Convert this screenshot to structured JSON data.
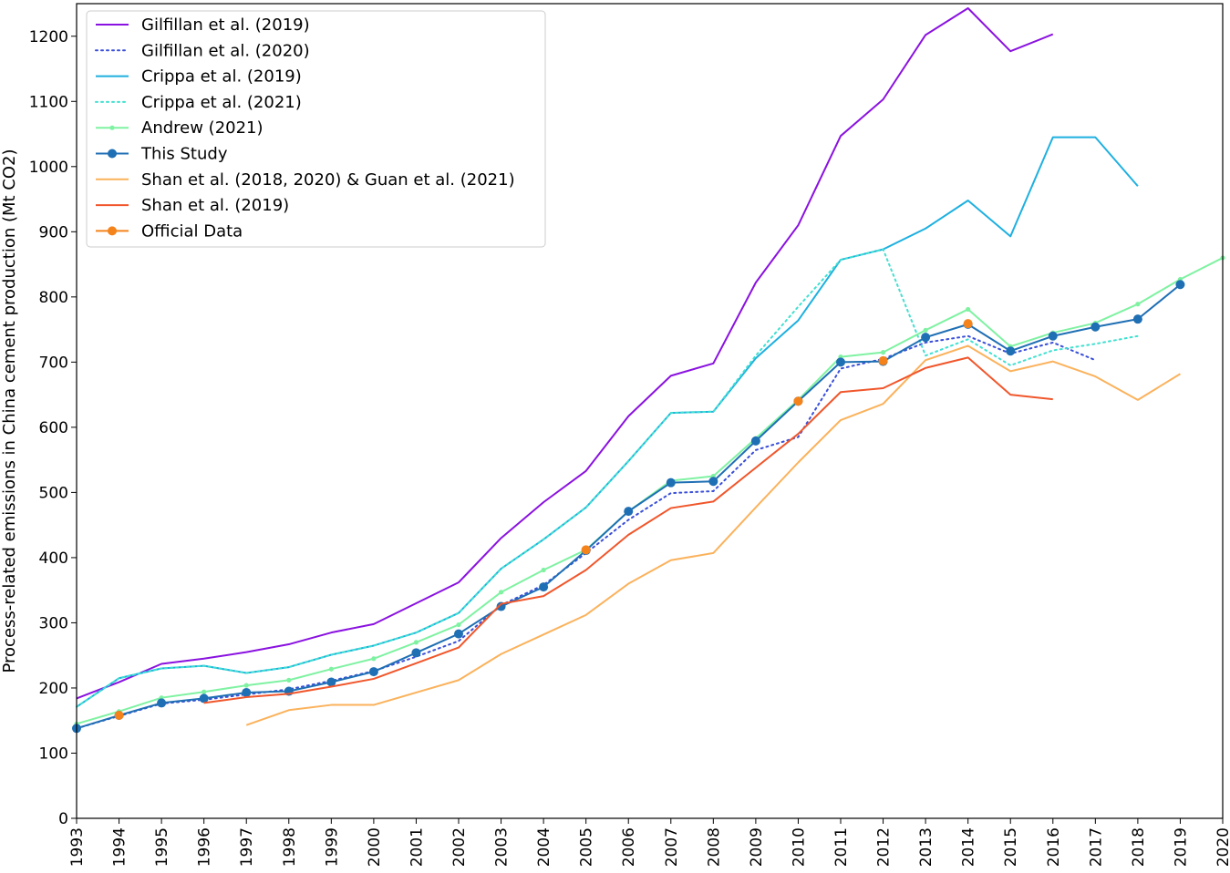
{
  "chart_data": {
    "type": "line",
    "title": "",
    "xlabel": "",
    "ylabel": "Process-related emissions in China cement production (Mt CO2)",
    "xlim": [
      1993,
      2020
    ],
    "ylim": [
      0,
      1250
    ],
    "xticks": [
      "1993",
      "1994",
      "1995",
      "1996",
      "1997",
      "1998",
      "1999",
      "2000",
      "2001",
      "2002",
      "2003",
      "2004",
      "2005",
      "2006",
      "2007",
      "2008",
      "2009",
      "2010",
      "2011",
      "2012",
      "2013",
      "2014",
      "2015",
      "2016",
      "2017",
      "2018",
      "2019",
      "2020"
    ],
    "yticks": [
      "0",
      "100",
      "200",
      "300",
      "400",
      "500",
      "600",
      "700",
      "800",
      "900",
      "1000",
      "1100",
      "1200"
    ],
    "legend_position": "top-left",
    "series": [
      {
        "name": "Gilfillan et al. (2019)",
        "color": "#8a12e0",
        "style": "solid",
        "marker": "none",
        "x": [
          1993,
          1994,
          1995,
          1996,
          1997,
          1998,
          1999,
          2000,
          2001,
          2002,
          2003,
          2004,
          2005,
          2006,
          2007,
          2008,
          2009,
          2010,
          2011,
          2012,
          2013,
          2014,
          2015,
          2016
        ],
        "values": [
          184,
          209,
          237,
          245,
          255,
          267,
          285,
          298,
          330,
          362,
          430,
          485,
          533,
          617,
          679,
          698,
          822,
          910,
          1047,
          1103,
          1202,
          1243,
          1177,
          1203
        ]
      },
      {
        "name": "Gilfillan et al. (2020)",
        "color": "#3a4fd8",
        "style": "dotted",
        "marker": "none",
        "x": [
          1993,
          1994,
          1995,
          1996,
          1997,
          1998,
          1999,
          2000,
          2001,
          2002,
          2003,
          2004,
          2005,
          2006,
          2007,
          2008,
          2009,
          2010,
          2011,
          2012,
          2013,
          2014,
          2015,
          2016,
          2017
        ],
        "values": [
          138,
          157,
          176,
          182,
          190,
          198,
          211,
          226,
          248,
          272,
          327,
          358,
          407,
          458,
          499,
          502,
          565,
          585,
          690,
          705,
          730,
          740,
          713,
          730,
          703
        ]
      },
      {
        "name": "Crippa et al. (2019)",
        "color": "#1eb0e0",
        "style": "solid",
        "marker": "none",
        "x": [
          1993,
          1994,
          1995,
          1996,
          1997,
          1998,
          1999,
          2000,
          2001,
          2002,
          2003,
          2004,
          2005,
          2006,
          2007,
          2008,
          2009,
          2010,
          2011,
          2012,
          2013,
          2014,
          2015,
          2016,
          2017,
          2018
        ],
        "values": [
          171,
          215,
          230,
          234,
          223,
          232,
          251,
          265,
          285,
          315,
          383,
          428,
          477,
          548,
          622,
          624,
          706,
          764,
          857,
          873,
          905,
          948,
          893,
          1045,
          1045,
          970
        ]
      },
      {
        "name": "Crippa et al. (2021)",
        "color": "#40e0d0",
        "style": "dotted",
        "marker": "none",
        "x": [
          1993,
          1994,
          1995,
          1996,
          1997,
          1998,
          1999,
          2000,
          2001,
          2002,
          2003,
          2004,
          2005,
          2006,
          2007,
          2008,
          2009,
          2010,
          2011,
          2012,
          2013,
          2014,
          2015,
          2016,
          2017,
          2018
        ],
        "values": [
          171,
          215,
          230,
          234,
          223,
          232,
          251,
          265,
          285,
          315,
          383,
          428,
          477,
          548,
          622,
          624,
          710,
          785,
          857,
          873,
          710,
          735,
          695,
          718,
          728,
          740
        ]
      },
      {
        "name": "Andrew (2021)",
        "color": "#7ff2a2",
        "style": "solid",
        "marker": "small-dot",
        "x": [
          1993,
          1994,
          1995,
          1996,
          1997,
          1998,
          1999,
          2000,
          2001,
          2002,
          2003,
          2004,
          2005,
          2006,
          2007,
          2008,
          2009,
          2010,
          2011,
          2012,
          2013,
          2014,
          2015,
          2016,
          2017,
          2018,
          2019,
          2020
        ],
        "values": [
          145,
          164,
          185,
          194,
          204,
          212,
          229,
          245,
          270,
          297,
          347,
          381,
          412,
          471,
          518,
          525,
          583,
          642,
          708,
          715,
          749,
          781,
          724,
          745,
          760,
          789,
          827,
          860
        ]
      },
      {
        "name": "This Study",
        "color": "#1f6fb4",
        "style": "solid",
        "marker": "dot",
        "x": [
          1993,
          1994,
          1995,
          1996,
          1997,
          1998,
          1999,
          2000,
          2001,
          2002,
          2003,
          2004,
          2005,
          2006,
          2007,
          2008,
          2009,
          2010,
          2011,
          2012,
          2013,
          2014,
          2015,
          2016,
          2017,
          2018,
          2019
        ],
        "values": [
          138,
          158,
          177,
          184,
          193,
          195,
          209,
          225,
          254,
          283,
          325,
          355,
          411,
          471,
          515,
          517,
          579,
          640,
          700,
          701,
          738,
          758,
          717,
          740,
          754,
          766,
          819
        ]
      },
      {
        "name": "Shan et al. (2018, 2020) & Guan et al. (2021)",
        "color": "#fbb25c",
        "style": "solid",
        "marker": "none",
        "x": [
          1997,
          1998,
          1999,
          2000,
          2001,
          2002,
          2003,
          2004,
          2005,
          2006,
          2007,
          2008,
          2009,
          2010,
          2011,
          2012,
          2013,
          2014,
          2015,
          2016,
          2017,
          2018,
          2019
        ],
        "values": [
          143,
          166,
          174,
          174,
          193,
          212,
          252,
          282,
          312,
          360,
          396,
          407,
          477,
          546,
          611,
          636,
          703,
          725,
          686,
          701,
          678,
          642,
          682
        ]
      },
      {
        "name": "Shan et al. (2019)",
        "color": "#f0562b",
        "style": "solid",
        "marker": "none",
        "x": [
          1996,
          1997,
          1998,
          1999,
          2000,
          2001,
          2002,
          2003,
          2004,
          2005,
          2006,
          2007,
          2008,
          2009,
          2010,
          2011,
          2012,
          2013,
          2014,
          2015,
          2016
        ],
        "values": [
          177,
          186,
          191,
          202,
          214,
          238,
          262,
          329,
          341,
          381,
          435,
          476,
          486,
          538,
          590,
          654,
          660,
          691,
          707,
          650,
          643
        ]
      },
      {
        "name": "Official Data",
        "color": "#f4831b",
        "style": "none",
        "marker": "dot",
        "x": [
          1994,
          2005,
          2010,
          2012,
          2014
        ],
        "values": [
          158,
          412,
          640,
          702,
          759
        ]
      }
    ]
  }
}
